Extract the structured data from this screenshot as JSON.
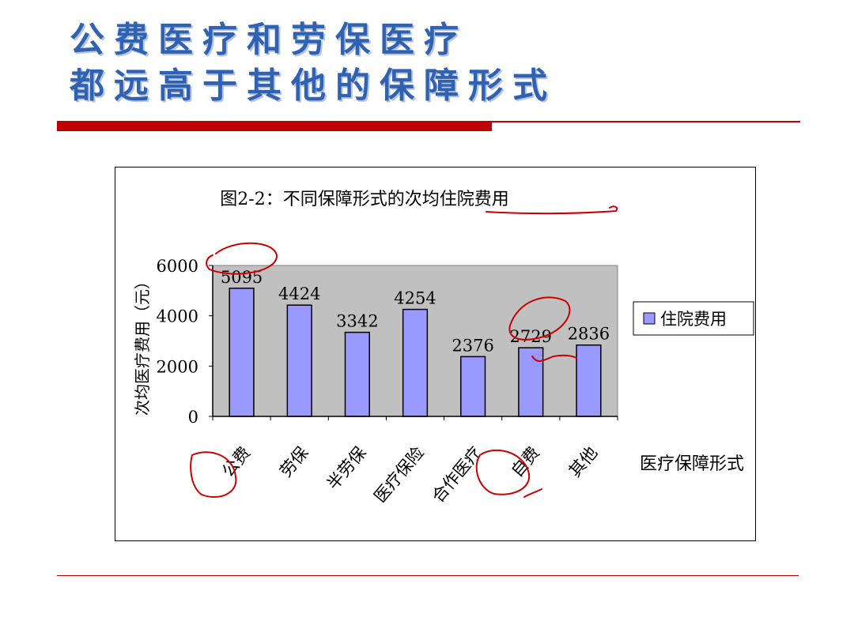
{
  "slide": {
    "title_lines": [
      "公费医疗和劳保医疗",
      "都远高于其他的保障形式"
    ],
    "colors": {
      "title": "#2f62b3",
      "rule": "#c00000"
    }
  },
  "chart_data": {
    "type": "bar",
    "title": "图2-2：不同保障形式的次均住院费用",
    "categories": [
      "公费",
      "劳保",
      "半劳保",
      "医疗保险",
      "合作医疗",
      "自费",
      "其他"
    ],
    "series": [
      {
        "name": "住院费用",
        "values": [
          5095,
          4424,
          3342,
          4254,
          2376,
          2729,
          2836
        ]
      }
    ],
    "data_labels": [
      "5095",
      "4424",
      "3342",
      "4254",
      "2376",
      "2729",
      "2836"
    ],
    "ylabel": "次均医疗费用（元）",
    "xlabel": "医疗保障形式",
    "ylim": [
      0,
      6000
    ],
    "yticks": [
      0,
      2000,
      4000,
      6000
    ],
    "grid": false,
    "legend": "right",
    "colors": {
      "bar": "#9999ff",
      "plot_area": "#c0c0c0",
      "annotation": "#cc0000"
    }
  }
}
